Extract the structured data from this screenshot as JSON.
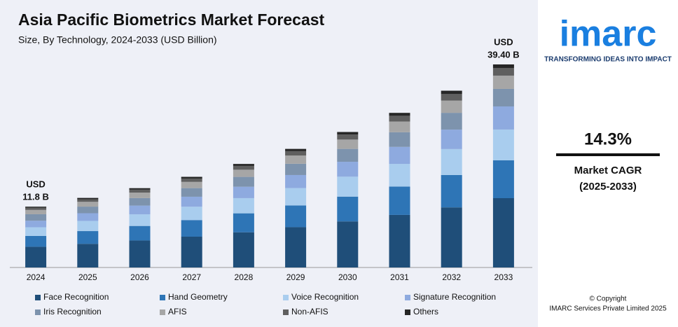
{
  "chart_data": {
    "type": "stacked-bar",
    "title": "Asia Pacific Biometrics Market Forecast",
    "subtitle": "Size, By Technology, 2024-2033 (USD Billion)",
    "categories": [
      "2024",
      "2025",
      "2026",
      "2027",
      "2028",
      "2029",
      "2030",
      "2031",
      "2032",
      "2033"
    ],
    "series": [
      {
        "name": "Face Recognition",
        "color": "#1f4e79",
        "values": [
          4.02,
          4.59,
          5.24,
          5.98,
          6.83,
          7.82,
          8.94,
          10.2,
          11.66,
          13.45
        ]
      },
      {
        "name": "Hand Geometry",
        "color": "#2e75b6",
        "values": [
          2.1,
          2.47,
          2.82,
          3.22,
          3.68,
          4.21,
          4.81,
          5.49,
          6.28,
          7.34
        ]
      },
      {
        "name": "Voice Recognition",
        "color": "#a9cdee",
        "values": [
          1.69,
          1.98,
          2.26,
          2.59,
          2.95,
          3.38,
          3.87,
          4.41,
          5.04,
          5.98
        ]
      },
      {
        "name": "Signature Recognition",
        "color": "#8eaadf",
        "values": [
          1.26,
          1.49,
          1.69,
          1.94,
          2.21,
          2.53,
          2.89,
          3.3,
          3.77,
          4.48
        ]
      },
      {
        "name": "Iris Recognition",
        "color": "#7d93ad",
        "values": [
          1.26,
          1.28,
          1.46,
          1.67,
          1.91,
          2.19,
          2.5,
          2.85,
          3.26,
          3.4
        ]
      },
      {
        "name": "AFIS",
        "color": "#a6a6a6",
        "values": [
          0.84,
          0.93,
          1.06,
          1.21,
          1.39,
          1.59,
          1.81,
          2.07,
          2.37,
          2.58
        ]
      },
      {
        "name": "Non-AFIS",
        "color": "#5f5f5f",
        "values": [
          0.42,
          0.5,
          0.57,
          0.65,
          0.74,
          0.85,
          0.97,
          1.11,
          1.27,
          1.49
        ]
      },
      {
        "name": "Others",
        "color": "#262626",
        "values": [
          0.21,
          0.26,
          0.29,
          0.33,
          0.38,
          0.44,
          0.5,
          0.57,
          0.65,
          0.68
        ]
      }
    ],
    "annotations": [
      {
        "category": "2024",
        "lines": [
          "USD",
          "11.8 B"
        ]
      },
      {
        "category": "2033",
        "lines": [
          "USD",
          "39.40 B"
        ]
      }
    ]
  },
  "sidebar": {
    "logo": "imarc",
    "tagline": "TRANSFORMING IDEAS INTO IMPACT",
    "cagr": "14.3%",
    "cagr_label": "Market CAGR",
    "cagr_period": "(2025-2033)",
    "copyright": "© Copyright",
    "company": "IMARC Services Private Limited 2025"
  }
}
